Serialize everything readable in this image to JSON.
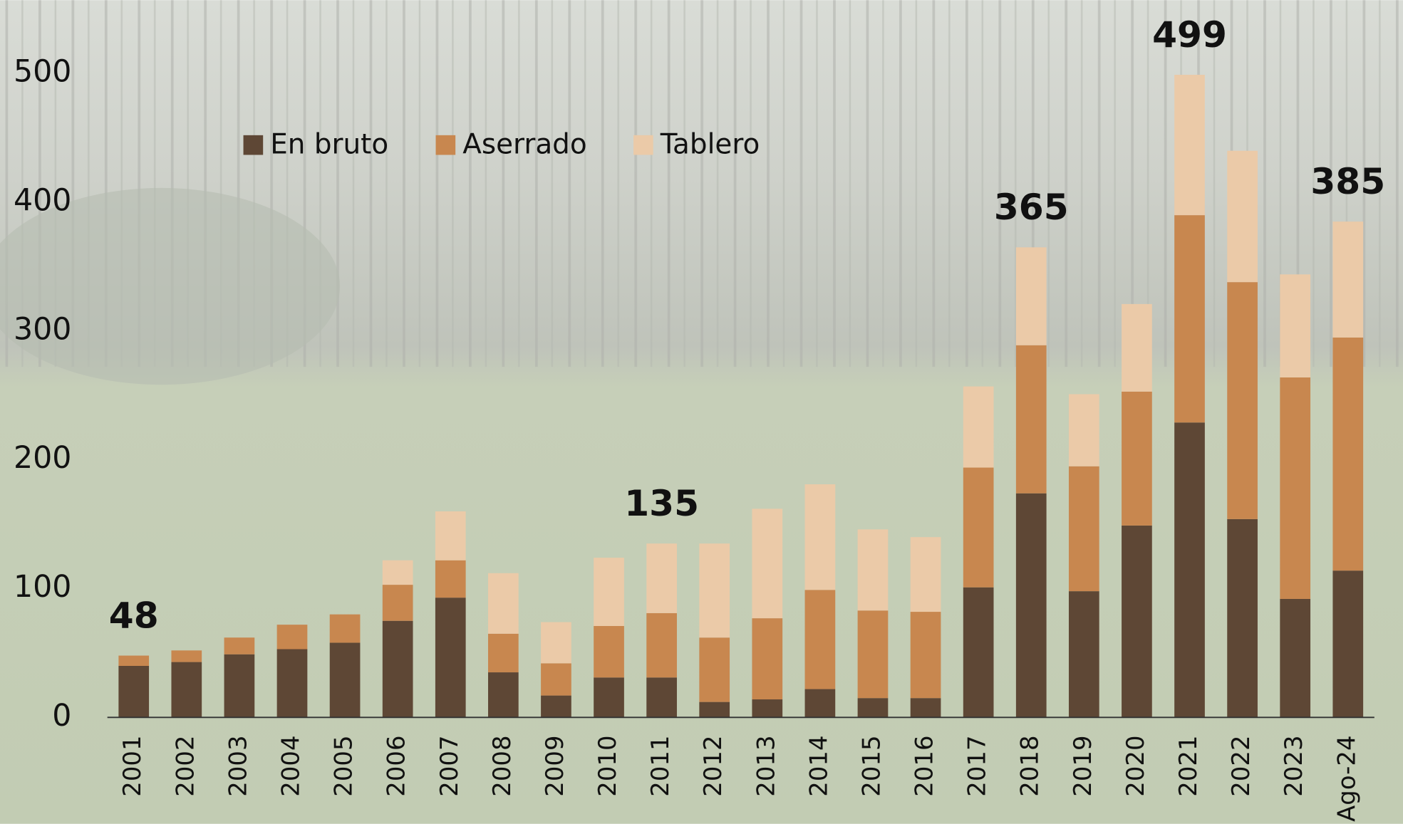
{
  "chart_data": {
    "type": "stacked-bar",
    "categories": [
      "2001",
      "2002",
      "2003",
      "2004",
      "2005",
      "2006",
      "2007",
      "2008",
      "2009",
      "2010",
      "2011",
      "2012",
      "2013",
      "2014",
      "2015",
      "2016",
      "2017",
      "2018",
      "2019",
      "2020",
      "2021",
      "2022",
      "2023",
      "Ago-24"
    ],
    "series": [
      {
        "name": "En bruto",
        "color": "#5e4735",
        "values": [
          40,
          43,
          49,
          53,
          58,
          75,
          93,
          35,
          17,
          31,
          31,
          12,
          14,
          22,
          15,
          15,
          101,
          174,
          98,
          149,
          229,
          154,
          92,
          114
        ]
      },
      {
        "name": "Aserrado",
        "color": "#c8874f",
        "values": [
          8,
          9,
          13,
          19,
          22,
          28,
          29,
          30,
          25,
          40,
          50,
          50,
          63,
          77,
          68,
          67,
          93,
          115,
          97,
          104,
          161,
          184,
          172,
          181
        ]
      },
      {
        "name": "Tablero",
        "color": "#ebcaa8",
        "values": [
          0,
          0,
          0,
          0,
          0,
          19,
          38,
          47,
          32,
          53,
          54,
          73,
          85,
          82,
          63,
          58,
          63,
          76,
          56,
          68,
          109,
          102,
          80,
          90
        ]
      }
    ],
    "totals": [
      48,
      null,
      null,
      null,
      null,
      null,
      null,
      null,
      null,
      null,
      135,
      null,
      null,
      null,
      null,
      null,
      null,
      365,
      null,
      null,
      499,
      null,
      null,
      385
    ],
    "footnote_marker": "1",
    "ylim": [
      0,
      500
    ],
    "yticks": [
      0,
      100,
      200,
      300,
      400,
      500
    ],
    "legend": "top-left"
  }
}
